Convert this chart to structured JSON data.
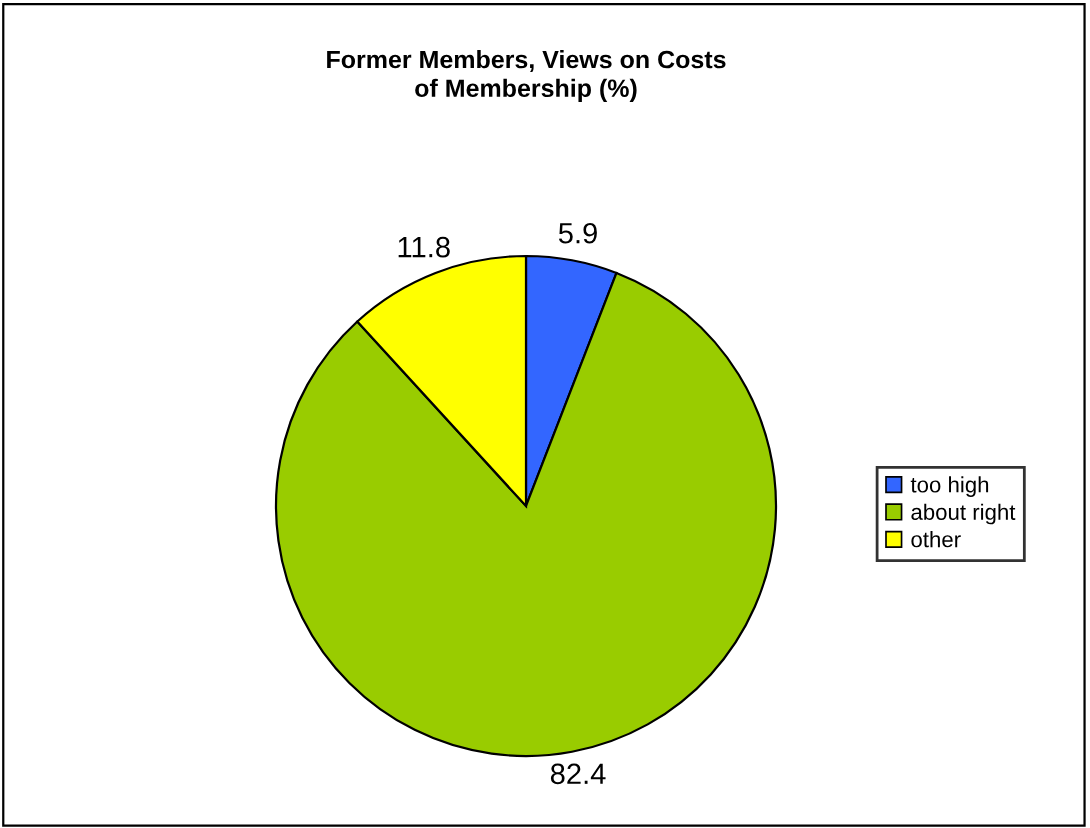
{
  "chart_data": {
    "type": "pie",
    "title": "Former Members, Views on Costs\nof Membership (%)",
    "categories": [
      "too high",
      "about right",
      "other"
    ],
    "values": [
      5.9,
      82.4,
      11.8
    ],
    "colors": [
      "#3366ff",
      "#99cc00",
      "#ffff00"
    ],
    "data_labels": true,
    "legend": "right"
  }
}
